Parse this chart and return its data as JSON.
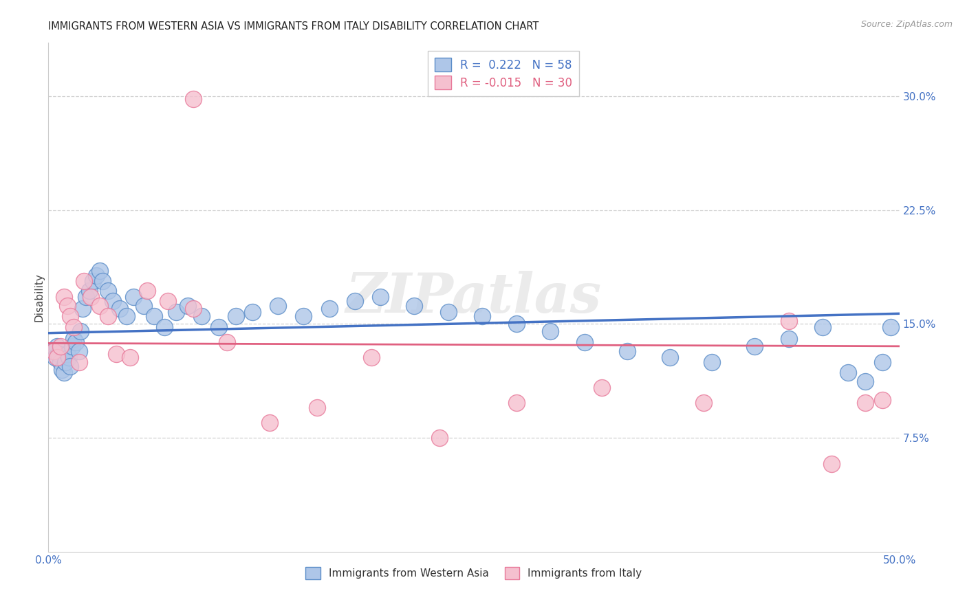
{
  "title": "IMMIGRANTS FROM WESTERN ASIA VS IMMIGRANTS FROM ITALY DISABILITY CORRELATION CHART",
  "source": "Source: ZipAtlas.com",
  "ylabel": "Disability",
  "legend_blue_r": "0.222",
  "legend_blue_n": "58",
  "legend_pink_r": "-0.015",
  "legend_pink_n": "30",
  "legend_label_blue": "Immigrants from Western Asia",
  "legend_label_pink": "Immigrants from Italy",
  "blue_color": "#aec6e8",
  "pink_color": "#f5c0cf",
  "blue_edge_color": "#5b8dc8",
  "pink_edge_color": "#e8799a",
  "blue_line_color": "#4472c4",
  "pink_line_color": "#e06080",
  "watermark": "ZIPatlas",
  "grid_color": "#d0d0d0",
  "tick_color": "#4472c4",
  "xlim": [
    0.0,
    0.5
  ],
  "ylim": [
    0.0,
    0.335
  ],
  "yticks": [
    0.075,
    0.15,
    0.225,
    0.3
  ],
  "ytick_labels": [
    "7.5%",
    "15.0%",
    "22.5%",
    "30.0%"
  ],
  "blue_x": [
    0.002,
    0.004,
    0.005,
    0.006,
    0.007,
    0.008,
    0.009,
    0.01,
    0.011,
    0.012,
    0.013,
    0.014,
    0.015,
    0.016,
    0.018,
    0.019,
    0.02,
    0.022,
    0.024,
    0.026,
    0.028,
    0.03,
    0.032,
    0.035,
    0.038,
    0.042,
    0.046,
    0.05,
    0.056,
    0.062,
    0.068,
    0.075,
    0.082,
    0.09,
    0.1,
    0.11,
    0.12,
    0.135,
    0.15,
    0.165,
    0.18,
    0.195,
    0.215,
    0.235,
    0.255,
    0.275,
    0.295,
    0.315,
    0.34,
    0.365,
    0.39,
    0.415,
    0.435,
    0.455,
    0.47,
    0.48,
    0.49,
    0.495
  ],
  "blue_y": [
    0.132,
    0.128,
    0.135,
    0.13,
    0.125,
    0.12,
    0.118,
    0.125,
    0.13,
    0.128,
    0.122,
    0.135,
    0.14,
    0.138,
    0.132,
    0.145,
    0.16,
    0.168,
    0.172,
    0.178,
    0.182,
    0.185,
    0.178,
    0.172,
    0.165,
    0.16,
    0.155,
    0.168,
    0.162,
    0.155,
    0.148,
    0.158,
    0.162,
    0.155,
    0.148,
    0.155,
    0.158,
    0.162,
    0.155,
    0.16,
    0.165,
    0.168,
    0.162,
    0.158,
    0.155,
    0.15,
    0.145,
    0.138,
    0.132,
    0.128,
    0.125,
    0.135,
    0.14,
    0.148,
    0.118,
    0.112,
    0.125,
    0.148
  ],
  "pink_x": [
    0.003,
    0.005,
    0.007,
    0.009,
    0.011,
    0.013,
    0.015,
    0.018,
    0.021,
    0.025,
    0.03,
    0.035,
    0.04,
    0.048,
    0.058,
    0.07,
    0.085,
    0.105,
    0.13,
    0.158,
    0.19,
    0.23,
    0.275,
    0.325,
    0.385,
    0.435,
    0.46,
    0.48,
    0.49,
    0.085
  ],
  "pink_y": [
    0.132,
    0.128,
    0.135,
    0.168,
    0.162,
    0.155,
    0.148,
    0.125,
    0.178,
    0.168,
    0.162,
    0.155,
    0.13,
    0.128,
    0.172,
    0.165,
    0.16,
    0.138,
    0.085,
    0.095,
    0.128,
    0.075,
    0.098,
    0.108,
    0.098,
    0.152,
    0.058,
    0.098,
    0.1,
    0.298
  ]
}
